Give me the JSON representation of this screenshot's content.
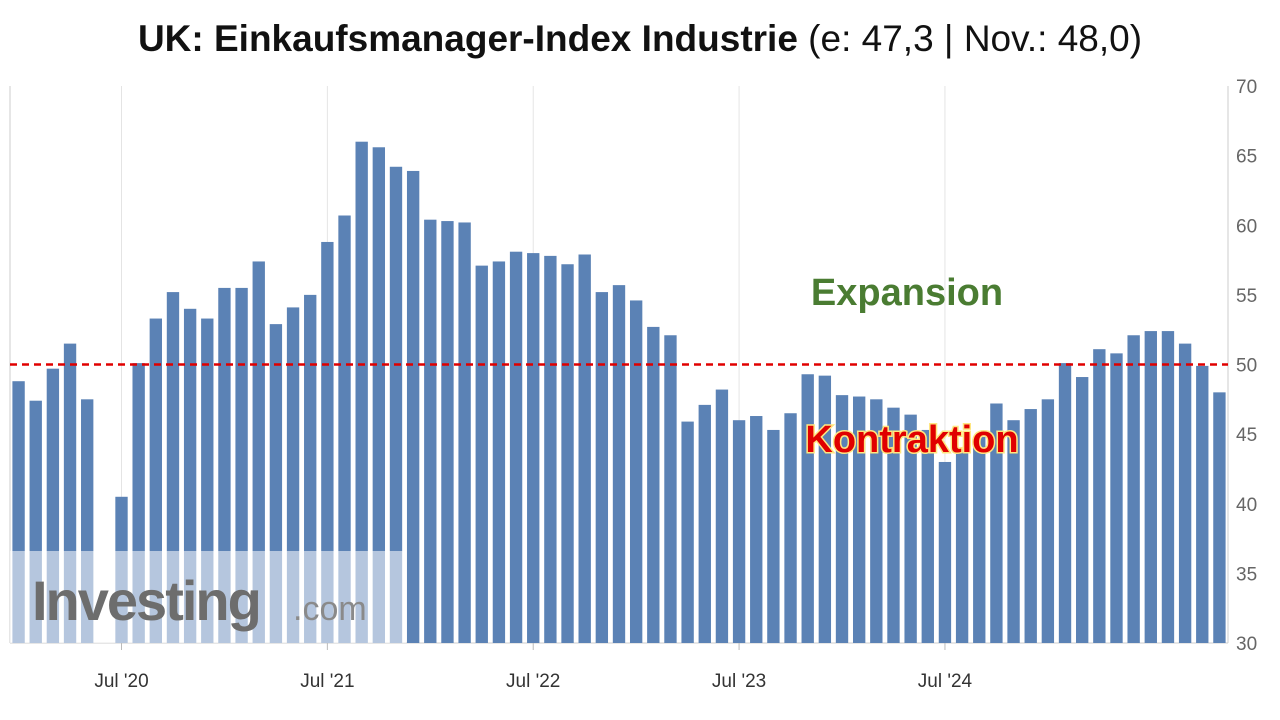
{
  "header": {
    "title_bold": "UK: Einkaufsmanager-Index Industrie",
    "title_rest": " (e: 47,3 | Nov.: 48,0)"
  },
  "watermark": {
    "brand": "Investing",
    "suffix": ".com"
  },
  "chart_data": {
    "type": "bar",
    "title": "UK: Einkaufsmanager-Index Industrie (e: 47,3 | Nov.: 48,0)",
    "xlabel": "",
    "ylabel": "",
    "ylim": [
      30,
      70
    ],
    "y_ticks": [
      "30",
      "35",
      "40",
      "45",
      "50",
      "55",
      "60",
      "65",
      "70"
    ],
    "x_ticks": [
      {
        "label": "Jul '20",
        "index": 6
      },
      {
        "label": "Jul '21",
        "index": 18
      },
      {
        "label": "Jul '22",
        "index": 30
      },
      {
        "label": "Jul '23",
        "index": 42
      },
      {
        "label": "Jul '24",
        "index": 54
      }
    ],
    "start_month": "Jan 2020",
    "values": [
      48.8,
      47.4,
      49.7,
      51.5,
      47.5,
      null,
      40.5,
      50.1,
      53.3,
      55.2,
      54.0,
      53.3,
      55.5,
      55.5,
      57.4,
      52.9,
      54.1,
      55.0,
      58.8,
      60.7,
      66.0,
      65.6,
      64.2,
      63.9,
      60.4,
      60.3,
      60.2,
      57.1,
      57.4,
      58.1,
      58.0,
      57.8,
      57.2,
      57.9,
      55.2,
      55.7,
      54.6,
      52.7,
      52.1,
      45.9,
      47.1,
      48.2,
      46.0,
      46.3,
      45.3,
      46.5,
      49.3,
      49.2,
      47.8,
      47.7,
      47.5,
      46.9,
      46.4,
      45.3,
      43.0,
      43.9,
      44.8,
      47.2,
      46.0,
      46.8,
      47.5,
      50.1,
      49.1,
      51.1,
      50.8,
      52.1,
      52.4,
      52.4,
      51.5,
      49.9,
      48.0
    ],
    "reference_line": {
      "value": 50,
      "color": "#e00000",
      "style": "dashed"
    },
    "annotations": [
      {
        "text": "Expansion",
        "color": "#4a7c32"
      },
      {
        "text": "Kontraktion",
        "color": "#e00000"
      }
    ],
    "bar_color": "#5b82b5",
    "grid": "vertical",
    "y_axis_position": "right"
  }
}
